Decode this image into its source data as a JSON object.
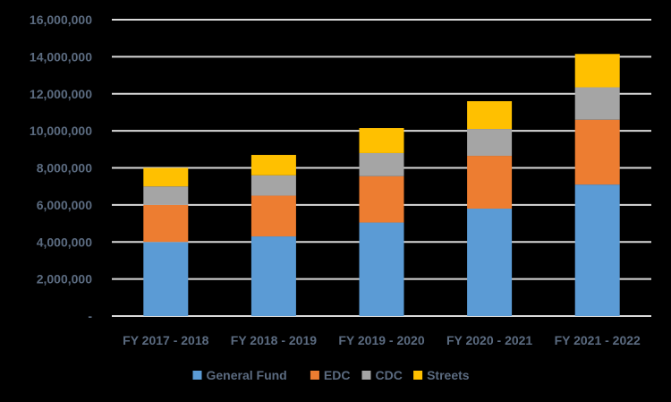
{
  "chart_data": {
    "type": "bar",
    "stacked": true,
    "title": "",
    "xlabel": "",
    "ylabel": "",
    "ylim": [
      0,
      16000000
    ],
    "y_ticks": [
      {
        "value": 0,
        "label": "-"
      },
      {
        "value": 2000000,
        "label": "2,000,000"
      },
      {
        "value": 4000000,
        "label": "4,000,000"
      },
      {
        "value": 6000000,
        "label": "6,000,000"
      },
      {
        "value": 8000000,
        "label": "8,000,000"
      },
      {
        "value": 10000000,
        "label": "10,000,000"
      },
      {
        "value": 12000000,
        "label": "12,000,000"
      },
      {
        "value": 14000000,
        "label": "14,000,000"
      },
      {
        "value": 16000000,
        "label": "16,000,000"
      }
    ],
    "categories": [
      "FY 2017 - 2018",
      "FY 2018 - 2019",
      "FY 2019 - 2020",
      "FY 2020 - 2021",
      "FY 2021 - 2022"
    ],
    "series": [
      {
        "name": "General Fund",
        "color": "#5b9bd5",
        "values": [
          4000000,
          4300000,
          5050000,
          5800000,
          7100000
        ]
      },
      {
        "name": "EDC",
        "color": "#ed7d31",
        "values": [
          2000000,
          2200000,
          2500000,
          2850000,
          3500000
        ]
      },
      {
        "name": "CDC",
        "color": "#a5a5a5",
        "values": [
          1000000,
          1100000,
          1250000,
          1450000,
          1750000
        ]
      },
      {
        "name": "Streets",
        "color": "#ffc000",
        "values": [
          1000000,
          1100000,
          1350000,
          1500000,
          1800000
        ]
      }
    ],
    "grid": true,
    "legend_position": "bottom"
  }
}
